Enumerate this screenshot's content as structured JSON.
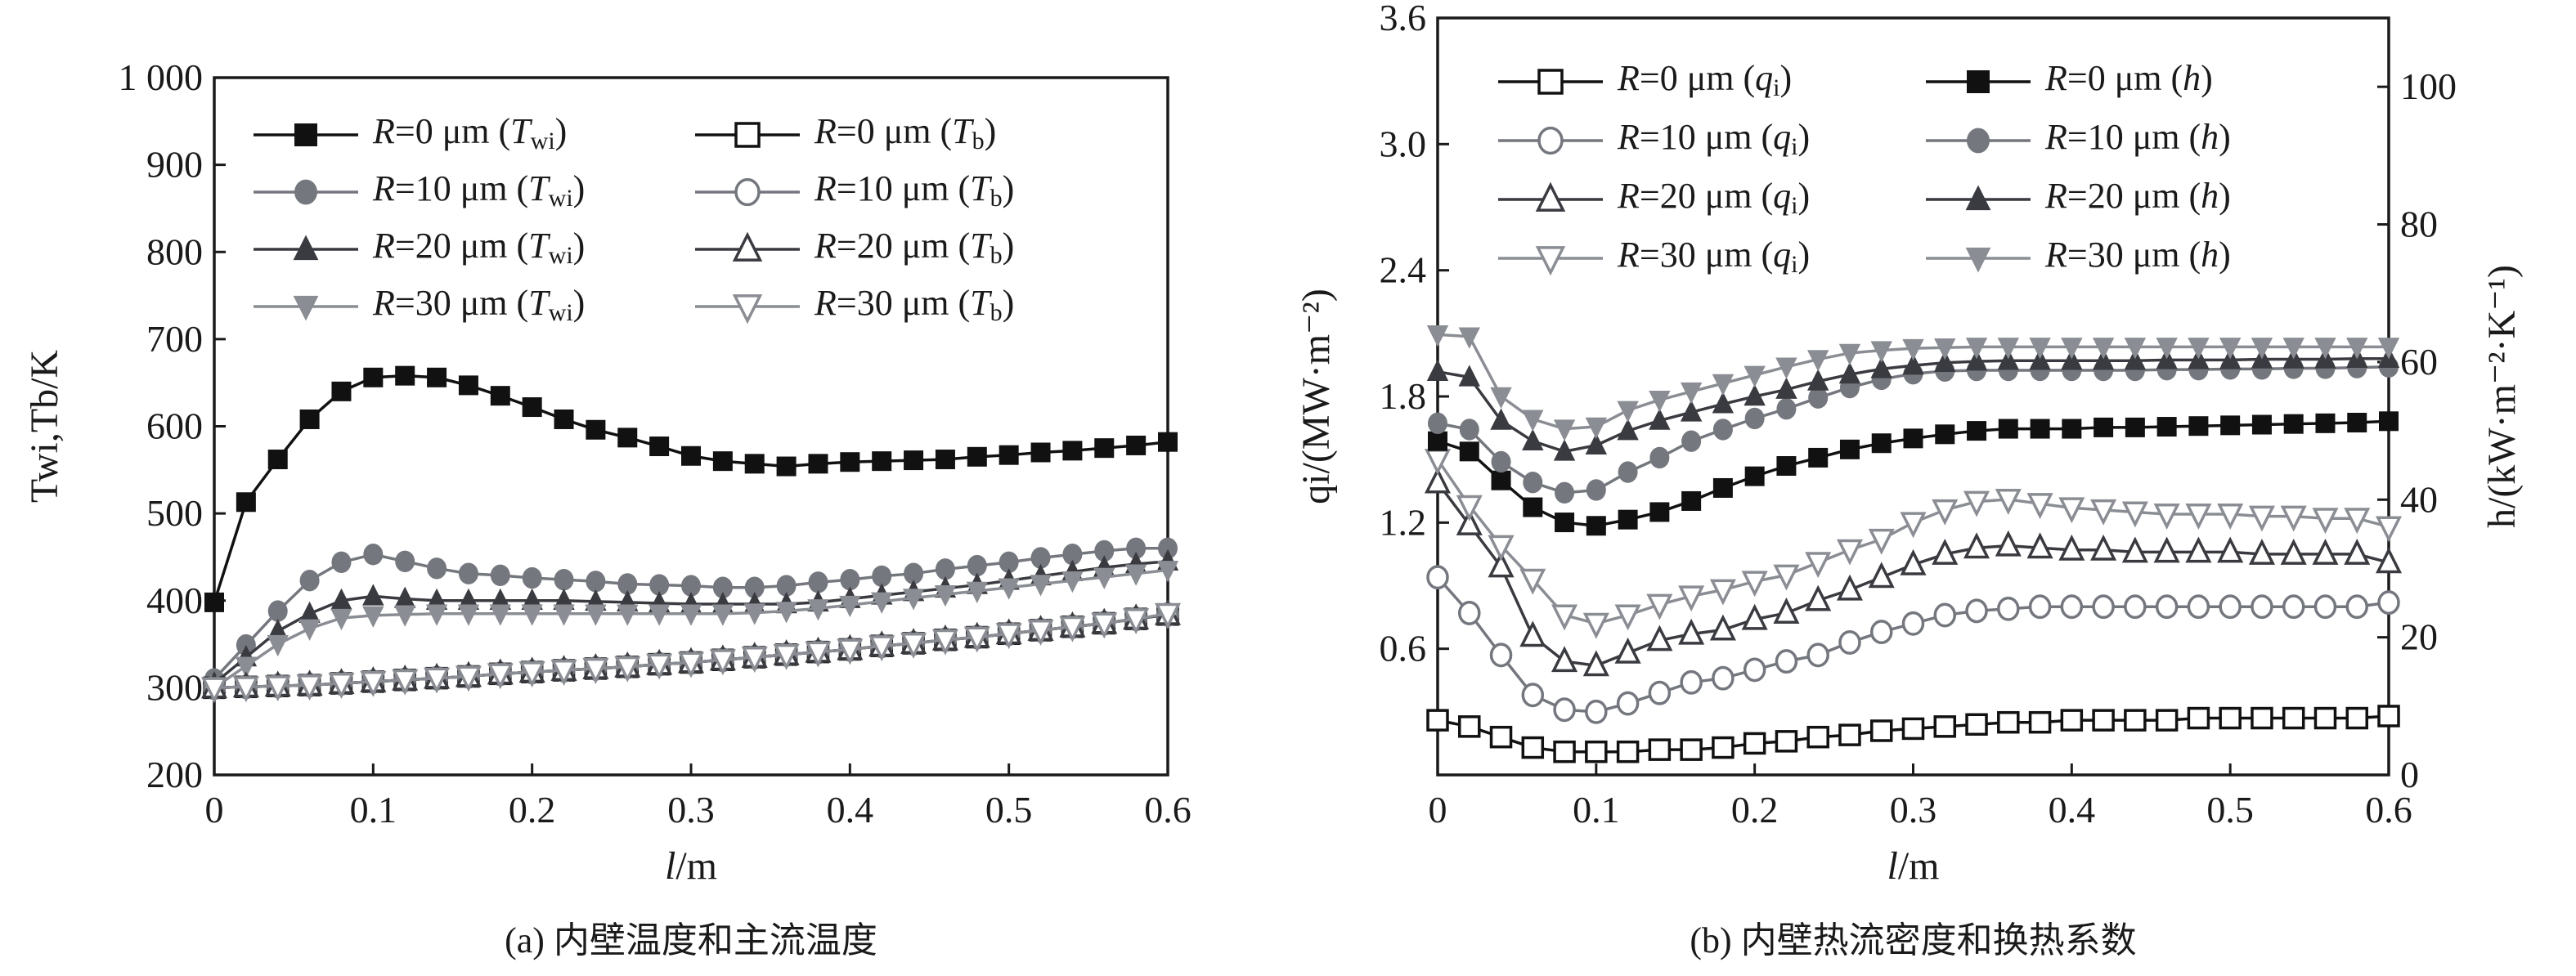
{
  "chart_data": [
    {
      "id": "a",
      "type": "line",
      "caption": "(a) 内壁温度和主流温度",
      "xlabel": "l/m",
      "ylabel": "Twi,Tb/K",
      "xlim": [
        0,
        0.6
      ],
      "ylim": [
        200,
        1000
      ],
      "xticks": [
        0,
        0.1,
        0.2,
        0.3,
        0.4,
        0.5,
        0.6
      ],
      "xtick_labels": [
        "0",
        "0.1",
        "0.2",
        "0.3",
        "0.4",
        "0.5",
        "0.6"
      ],
      "yticks": [
        200,
        300,
        400,
        500,
        600,
        700,
        800,
        900,
        1000
      ],
      "ytick_labels": [
        "200",
        "300",
        "400",
        "500",
        "600",
        "700",
        "800",
        "900",
        "1 000"
      ],
      "grid": false,
      "legend_position": "top, two columns",
      "x": [
        0,
        0.02,
        0.04,
        0.06,
        0.08,
        0.1,
        0.12,
        0.14,
        0.16,
        0.18,
        0.2,
        0.22,
        0.24,
        0.26,
        0.28,
        0.3,
        0.32,
        0.34,
        0.36,
        0.38,
        0.4,
        0.42,
        0.44,
        0.46,
        0.48,
        0.5,
        0.52,
        0.54,
        0.56,
        0.58,
        0.6
      ],
      "series": [
        {
          "name": "R=0 μm (Twi)",
          "label_main": "R",
          "label_mid": "=0 μm (",
          "label_var": "T",
          "label_sub": "wi",
          "label_end": ")",
          "marker": "square",
          "filled": true,
          "color": "#111111",
          "values": [
            398,
            513,
            562,
            608,
            640,
            656,
            658,
            656,
            647,
            635,
            622,
            608,
            596,
            587,
            577,
            566,
            560,
            557,
            554,
            557,
            559,
            560,
            561,
            562,
            565,
            567,
            570,
            572,
            575,
            578,
            582
          ]
        },
        {
          "name": "R=10 μm (Twi)",
          "label_main": "R",
          "label_mid": "=10 μm (",
          "label_var": "T",
          "label_sub": "wi",
          "label_end": ")",
          "marker": "circle",
          "filled": true,
          "color": "#74777e",
          "values": [
            310,
            349,
            388,
            423,
            444,
            453,
            445,
            437,
            431,
            429,
            426,
            424,
            422,
            419,
            418,
            417,
            415,
            415,
            417,
            421,
            424,
            428,
            431,
            436,
            440,
            444,
            449,
            453,
            457,
            460,
            460
          ]
        },
        {
          "name": "R=20 μm (Twi)",
          "label_main": "R",
          "label_mid": "=20 μm (",
          "label_var": "T",
          "label_sub": "wi",
          "label_end": ")",
          "marker": "triangle-up",
          "filled": true,
          "color": "#3a3b40",
          "values": [
            305,
            335,
            365,
            385,
            400,
            405,
            402,
            400,
            400,
            400,
            400,
            400,
            399,
            398,
            397,
            396,
            396,
            396,
            396,
            398,
            402,
            406,
            410,
            414,
            418,
            423,
            428,
            433,
            438,
            442,
            445
          ]
        },
        {
          "name": "R=30 μm (Twi)",
          "label_main": "R",
          "label_mid": "=30 μm (",
          "label_var": "T",
          "label_sub": "wi",
          "label_end": ")",
          "marker": "triangle-down",
          "filled": true,
          "color": "#8a8d93",
          "values": [
            300,
            325,
            350,
            368,
            380,
            383,
            384,
            385,
            385,
            385,
            385,
            385,
            385,
            385,
            385,
            385,
            385,
            386,
            388,
            391,
            395,
            399,
            403,
            407,
            411,
            415,
            419,
            423,
            427,
            431,
            435
          ]
        },
        {
          "name": "R=0 μm (Tb)",
          "label_main": "R",
          "label_mid": "=0 μm (",
          "label_var": "T",
          "label_sub": "b",
          "label_end": ")",
          "marker": "square",
          "filled": false,
          "color": "#111111",
          "values": [
            300,
            301,
            302,
            303,
            305,
            307,
            309,
            311,
            313,
            316,
            318,
            320,
            322,
            324,
            327,
            329,
            332,
            335,
            338,
            341,
            344,
            348,
            351,
            355,
            358,
            362,
            366,
            370,
            374,
            379,
            384
          ]
        },
        {
          "name": "R=10 μm (Tb)",
          "label_main": "R",
          "label_mid": "=10 μm (",
          "label_var": "T",
          "label_sub": "b",
          "label_end": ")",
          "marker": "circle",
          "filled": false,
          "color": "#74777e",
          "values": [
            300,
            301,
            302,
            303,
            305,
            307,
            309,
            311,
            313,
            316,
            318,
            320,
            322,
            324,
            327,
            329,
            332,
            335,
            338,
            341,
            344,
            348,
            351,
            355,
            358,
            362,
            366,
            370,
            374,
            379,
            384
          ]
        },
        {
          "name": "R=20 μm (Tb)",
          "label_main": "R",
          "label_mid": "=20 μm (",
          "label_var": "T",
          "label_sub": "b",
          "label_end": ")",
          "marker": "triangle-up",
          "filled": false,
          "color": "#3a3b40",
          "values": [
            300,
            301,
            302,
            303,
            305,
            307,
            309,
            311,
            313,
            316,
            318,
            320,
            322,
            324,
            327,
            329,
            332,
            335,
            338,
            341,
            344,
            348,
            351,
            355,
            358,
            362,
            366,
            370,
            374,
            379,
            384
          ]
        },
        {
          "name": "R=30 μm (Tb)",
          "label_main": "R",
          "label_mid": "=30 μm (",
          "label_var": "T",
          "label_sub": "b",
          "label_end": ")",
          "marker": "triangle-down",
          "filled": false,
          "color": "#8a8d93",
          "values": [
            300,
            301,
            302,
            303,
            305,
            307,
            309,
            311,
            313,
            316,
            318,
            320,
            322,
            324,
            327,
            329,
            332,
            335,
            338,
            341,
            344,
            348,
            351,
            355,
            358,
            362,
            366,
            370,
            374,
            379,
            385
          ]
        }
      ]
    },
    {
      "id": "b",
      "type": "line",
      "caption": "(b) 内壁热流密度和换热系数",
      "xlabel": "l/m",
      "ylabel": "qi/(MW·m⁻²)",
      "y2label": "h/(kW·m⁻²·K⁻¹)",
      "xlim": [
        0,
        0.6
      ],
      "ylim": [
        0,
        3.6
      ],
      "y2lim": [
        0,
        110
      ],
      "xticks": [
        0,
        0.1,
        0.2,
        0.3,
        0.4,
        0.5,
        0.6
      ],
      "xtick_labels": [
        "0",
        "0.1",
        "0.2",
        "0.3",
        "0.4",
        "0.5",
        "0.6"
      ],
      "yticks": [
        0.6,
        1.2,
        1.8,
        2.4,
        3.0,
        3.6
      ],
      "ytick_labels": [
        "0.6",
        "1.2",
        "1.8",
        "2.4",
        "3.0",
        "3.6"
      ],
      "y2ticks": [
        0,
        20,
        40,
        60,
        80,
        100
      ],
      "y2tick_labels": [
        "0",
        "20",
        "40",
        "60",
        "80",
        "100"
      ],
      "grid": false,
      "legend_position": "top, two columns",
      "x": [
        0,
        0.02,
        0.04,
        0.06,
        0.08,
        0.1,
        0.12,
        0.14,
        0.16,
        0.18,
        0.2,
        0.22,
        0.24,
        0.26,
        0.28,
        0.3,
        0.32,
        0.34,
        0.36,
        0.38,
        0.4,
        0.42,
        0.44,
        0.46,
        0.48,
        0.5,
        0.52,
        0.54,
        0.56,
        0.58,
        0.6
      ],
      "series": [
        {
          "name": "R=0 μm (qi)",
          "axis": "left",
          "label_main": "R",
          "label_mid": "=0 μm (",
          "label_var": "q",
          "label_sub": "i",
          "label_end": ")",
          "marker": "square",
          "filled": false,
          "color": "#111111",
          "values": [
            0.26,
            0.23,
            0.18,
            0.13,
            0.11,
            0.11,
            0.11,
            0.12,
            0.12,
            0.13,
            0.15,
            0.16,
            0.18,
            0.19,
            0.21,
            0.22,
            0.23,
            0.24,
            0.25,
            0.25,
            0.26,
            0.26,
            0.26,
            0.26,
            0.27,
            0.27,
            0.27,
            0.27,
            0.27,
            0.27,
            0.28
          ]
        },
        {
          "name": "R=10 μm (qi)",
          "axis": "left",
          "label_main": "R",
          "label_mid": "=10 μm (",
          "label_var": "q",
          "label_sub": "i",
          "label_end": ")",
          "marker": "circle",
          "filled": false,
          "color": "#74777e",
          "values": [
            0.94,
            0.77,
            0.57,
            0.38,
            0.31,
            0.3,
            0.34,
            0.39,
            0.44,
            0.46,
            0.5,
            0.54,
            0.57,
            0.63,
            0.68,
            0.72,
            0.76,
            0.78,
            0.79,
            0.8,
            0.8,
            0.8,
            0.8,
            0.8,
            0.8,
            0.8,
            0.8,
            0.8,
            0.8,
            0.8,
            0.82
          ]
        },
        {
          "name": "R=20 μm (qi)",
          "axis": "left",
          "label_main": "R",
          "label_mid": "=20 μm (",
          "label_var": "q",
          "label_sub": "i",
          "label_end": ")",
          "marker": "triangle-up",
          "filled": false,
          "color": "#3a3b40",
          "values": [
            1.39,
            1.19,
            0.99,
            0.66,
            0.54,
            0.52,
            0.58,
            0.64,
            0.67,
            0.69,
            0.74,
            0.77,
            0.83,
            0.88,
            0.94,
            1.0,
            1.05,
            1.08,
            1.09,
            1.08,
            1.07,
            1.07,
            1.06,
            1.06,
            1.06,
            1.06,
            1.05,
            1.05,
            1.05,
            1.05,
            1.01
          ]
        },
        {
          "name": "R=30 μm (qi)",
          "axis": "left",
          "label_main": "R",
          "label_mid": "=30 μm (",
          "label_var": "q",
          "label_sub": "i",
          "label_end": ")",
          "marker": "triangle-down",
          "filled": false,
          "color": "#8a8d93",
          "values": [
            1.5,
            1.28,
            1.09,
            0.93,
            0.76,
            0.72,
            0.76,
            0.81,
            0.85,
            0.88,
            0.92,
            0.95,
            1.01,
            1.07,
            1.12,
            1.2,
            1.26,
            1.3,
            1.31,
            1.29,
            1.27,
            1.26,
            1.25,
            1.24,
            1.24,
            1.24,
            1.23,
            1.23,
            1.22,
            1.22,
            1.18
          ]
        },
        {
          "name": "R=0 μm (h)",
          "axis": "right",
          "label_main": "R",
          "label_mid": "=0 μm (",
          "label_var": "h",
          "label_sub": "",
          "label_end": ")",
          "marker": "square",
          "filled": true,
          "color": "#111111",
          "values": [
            48.5,
            47.0,
            42.8,
            38.9,
            36.7,
            36.2,
            37.1,
            38.2,
            39.8,
            41.7,
            43.4,
            44.9,
            46.1,
            47.3,
            48.2,
            48.9,
            49.5,
            50.0,
            50.3,
            50.3,
            50.3,
            50.5,
            50.5,
            50.6,
            50.7,
            50.8,
            50.9,
            51.0,
            51.1,
            51.2,
            51.4
          ]
        },
        {
          "name": "R=10 μm (h)",
          "axis": "right",
          "label_main": "R",
          "label_mid": "=10 μm (",
          "label_var": "h",
          "label_sub": "",
          "label_end": ")",
          "marker": "circle",
          "filled": true,
          "color": "#74777e",
          "values": [
            51.1,
            50.2,
            45.5,
            42.5,
            41.0,
            41.4,
            44.0,
            46.1,
            48.5,
            50.2,
            51.8,
            53.2,
            54.8,
            56.3,
            57.5,
            58.3,
            58.7,
            58.8,
            58.8,
            58.8,
            58.8,
            58.8,
            58.8,
            58.9,
            58.9,
            59.0,
            59.0,
            59.1,
            59.1,
            59.2,
            59.3
          ]
        },
        {
          "name": "R=20 μm (h)",
          "axis": "right",
          "label_main": "R",
          "label_mid": "=20 μm (",
          "label_var": "h",
          "label_sub": "",
          "label_end": ")",
          "marker": "triangle-up",
          "filled": true,
          "color": "#3a3b40",
          "values": [
            58.6,
            57.8,
            51.5,
            48.5,
            47.0,
            47.9,
            50.0,
            51.5,
            52.7,
            53.9,
            55.0,
            56.0,
            57.2,
            58.2,
            59.0,
            59.5,
            59.9,
            60.1,
            60.2,
            60.2,
            60.2,
            60.2,
            60.2,
            60.3,
            60.3,
            60.3,
            60.4,
            60.4,
            60.4,
            60.5,
            60.5
          ]
        },
        {
          "name": "R=30 μm (h)",
          "axis": "right",
          "label_main": "R",
          "label_mid": "=30 μm (",
          "label_var": "h",
          "label_sub": "",
          "label_end": ")",
          "marker": "triangle-down",
          "filled": true,
          "color": "#8a8d93",
          "values": [
            64.0,
            63.7,
            55.0,
            51.7,
            50.3,
            50.6,
            53.0,
            54.5,
            55.7,
            56.9,
            58.1,
            59.3,
            60.4,
            61.3,
            61.7,
            62.0,
            62.1,
            62.2,
            62.2,
            62.2,
            62.2,
            62.2,
            62.2,
            62.2,
            62.2,
            62.2,
            62.2,
            62.2,
            62.2,
            62.2,
            62.2
          ]
        }
      ]
    }
  ]
}
